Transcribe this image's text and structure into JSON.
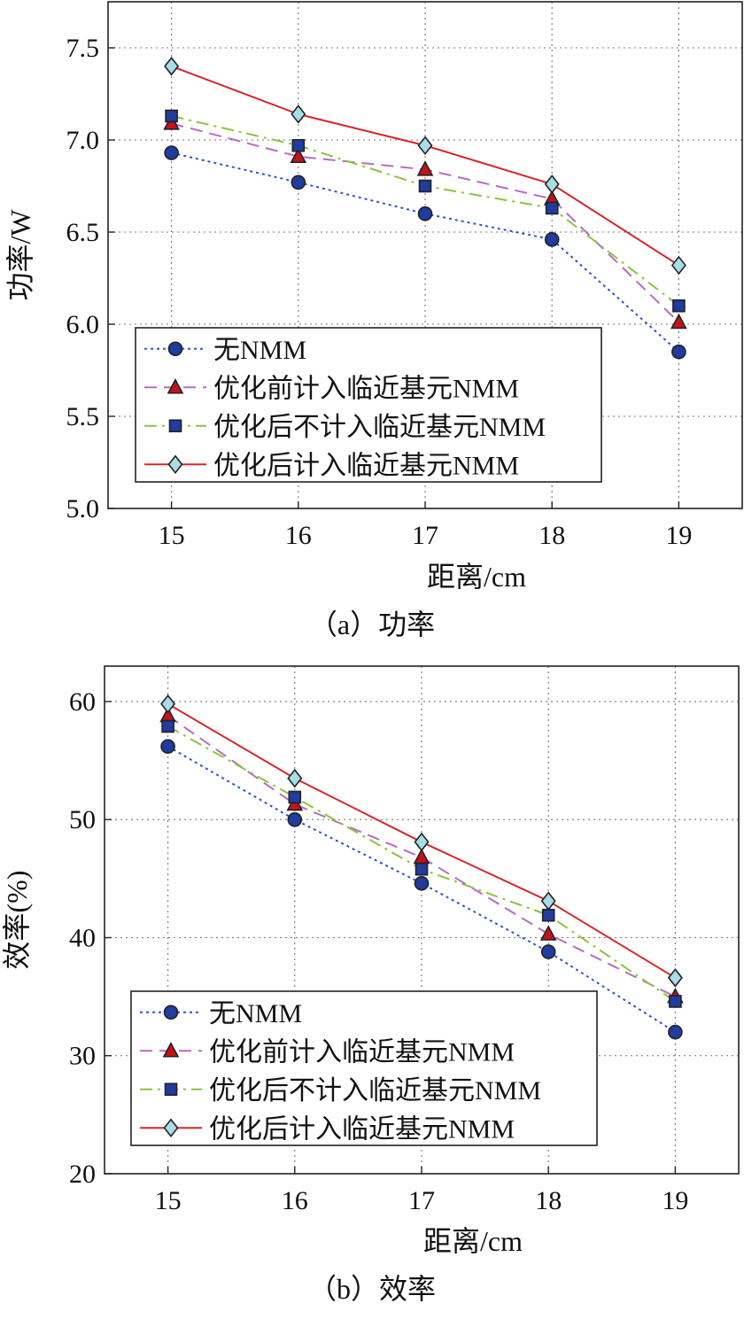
{
  "figure": {
    "charts": [
      {
        "caption": "（a）功率"
      },
      {
        "caption": "（b）效率"
      }
    ]
  },
  "chart_data": [
    {
      "type": "line",
      "title": "",
      "xlabel": "距离/cm",
      "ylabel": "功率/W",
      "x": [
        15,
        16,
        17,
        18,
        19
      ],
      "xlim": [
        14.5,
        19.5
      ],
      "ylim": [
        5.0,
        7.75
      ],
      "yticks": [
        "5.0",
        "5.5",
        "6.0",
        "6.5",
        "7.0",
        "7.5"
      ],
      "xticks": [
        "15",
        "16",
        "17",
        "18",
        "19"
      ],
      "grid": true,
      "legend_position": "lower-left",
      "series": [
        {
          "name": "无NMM",
          "values": [
            6.93,
            6.77,
            6.6,
            6.46,
            5.85
          ],
          "color": "#2f54c8",
          "dash": "dotted",
          "marker": "circle",
          "marker_fill": "#1f3c9e"
        },
        {
          "name": "优化前计入临近基元NMM",
          "values": [
            7.09,
            6.91,
            6.84,
            6.68,
            6.01
          ],
          "color": "#b86cc2",
          "dash": "dashed",
          "marker": "triangle",
          "marker_fill": "#c2121a"
        },
        {
          "name": "优化后不计入临近基元NMM",
          "values": [
            7.13,
            6.97,
            6.75,
            6.63,
            6.1
          ],
          "color": "#8cc43c",
          "dash": "dashdot",
          "marker": "square",
          "marker_fill": "#1f3c9e"
        },
        {
          "name": "优化后计入临近基元NMM",
          "values": [
            7.4,
            7.14,
            6.97,
            6.76,
            6.32
          ],
          "color": "#d6262b",
          "dash": "solid",
          "marker": "diamond",
          "marker_fill": "#a8dde8"
        }
      ]
    },
    {
      "type": "line",
      "title": "",
      "xlabel": "距离/cm",
      "ylabel": "效率(%)",
      "x": [
        15,
        16,
        17,
        18,
        19
      ],
      "xlim": [
        14.5,
        19.5
      ],
      "ylim": [
        20,
        63
      ],
      "yticks": [
        "20",
        "30",
        "40",
        "50",
        "60"
      ],
      "xticks": [
        "15",
        "16",
        "17",
        "18",
        "19"
      ],
      "grid": true,
      "legend_position": "lower-left",
      "series": [
        {
          "name": "无NMM",
          "values": [
            56.2,
            50.0,
            44.6,
            38.8,
            32.0
          ],
          "color": "#2f54c8",
          "dash": "dotted",
          "marker": "circle",
          "marker_fill": "#1f3c9e"
        },
        {
          "name": "优化前计入临近基元NMM",
          "values": [
            58.8,
            51.3,
            46.8,
            40.3,
            35.0
          ],
          "color": "#b86cc2",
          "dash": "dashed",
          "marker": "triangle",
          "marker_fill": "#c2121a"
        },
        {
          "name": "优化后不计入临近基元NMM",
          "values": [
            57.9,
            51.9,
            45.8,
            41.9,
            34.6
          ],
          "color": "#8cc43c",
          "dash": "dashdot",
          "marker": "square",
          "marker_fill": "#1f3c9e"
        },
        {
          "name": "优化后计入临近基元NMM",
          "values": [
            59.8,
            53.5,
            48.1,
            43.1,
            36.6
          ],
          "color": "#d6262b",
          "dash": "solid",
          "marker": "diamond",
          "marker_fill": "#a8dde8"
        }
      ]
    }
  ]
}
